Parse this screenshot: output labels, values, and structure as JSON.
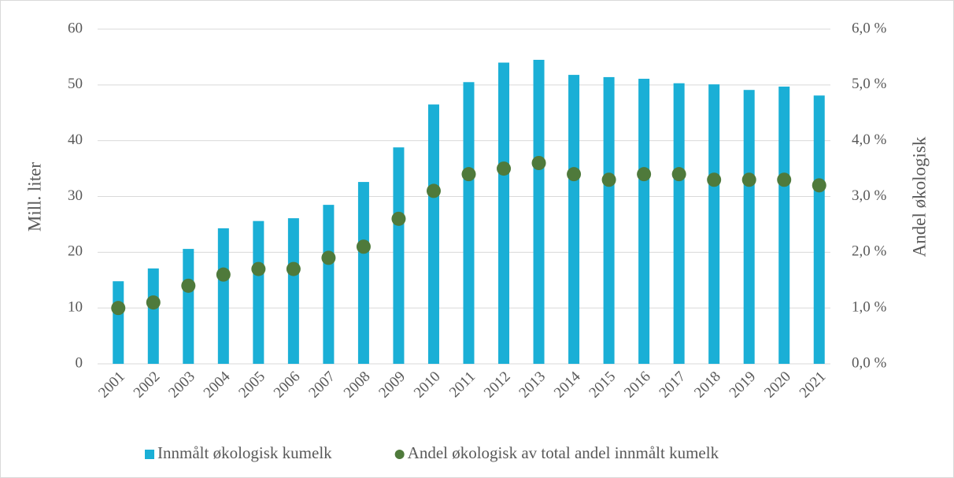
{
  "chart_data": {
    "type": "bar",
    "categories": [
      "2001",
      "2002",
      "2003",
      "2004",
      "2005",
      "2006",
      "2007",
      "2008",
      "2009",
      "2010",
      "2011",
      "2012",
      "2013",
      "2014",
      "2015",
      "2016",
      "2017",
      "2018",
      "2019",
      "2020",
      "2021"
    ],
    "series": [
      {
        "name": "Innmålt økologisk kumelk",
        "type": "bar",
        "axis": "y",
        "color": "#1aafd6",
        "values": [
          14.8,
          17.1,
          20.6,
          24.3,
          25.6,
          26.1,
          28.5,
          32.6,
          38.8,
          46.5,
          50.5,
          54.0,
          54.5,
          51.8,
          51.4,
          51.1,
          50.3,
          50.1,
          49.1,
          49.7,
          48.1
        ]
      },
      {
        "name": "Andel økologisk av total andel innmålt kumelk",
        "type": "scatter",
        "axis": "y2",
        "color": "#4f7a3b",
        "values": [
          1.0,
          1.1,
          1.4,
          1.6,
          1.7,
          1.7,
          1.9,
          2.1,
          2.6,
          3.1,
          3.4,
          3.5,
          3.6,
          3.4,
          3.3,
          3.4,
          3.4,
          3.3,
          3.3,
          3.3,
          3.2
        ]
      }
    ],
    "ylabel": "Mill. liter",
    "y2label": "Andel økologisk",
    "ylim": [
      0,
      60
    ],
    "yticks": [
      0,
      10,
      20,
      30,
      40,
      50,
      60
    ],
    "y2lim": [
      0,
      6
    ],
    "y2ticks": [
      {
        "value": 0,
        "label": "0,0 %"
      },
      {
        "value": 1,
        "label": "1,0 %"
      },
      {
        "value": 2,
        "label": "2,0 %"
      },
      {
        "value": 3,
        "label": "3,0 %"
      },
      {
        "value": 4,
        "label": "4,0 %"
      },
      {
        "value": 5,
        "label": "5,0 %"
      },
      {
        "value": 6,
        "label": "6,0 %"
      }
    ],
    "grid": true,
    "legend": "bottom"
  }
}
